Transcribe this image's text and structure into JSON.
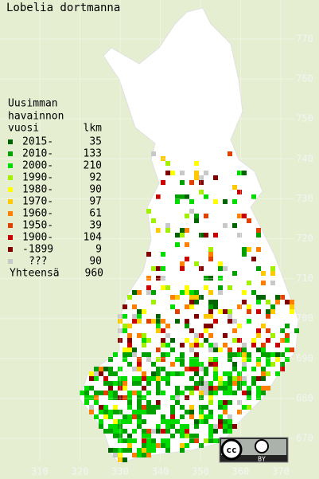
{
  "title": "Lobelia dortmanna",
  "legend": {
    "header": [
      "Uusimman",
      "havainnon"
    ],
    "period_label": "vuosi",
    "count_label": "lkm",
    "rows": [
      {
        "period": "2015-",
        "count": "35",
        "color": "#006400"
      },
      {
        "period": "2010-",
        "count": "133",
        "color": "#00a000"
      },
      {
        "period": "2000-",
        "count": "210",
        "color": "#00dc00"
      },
      {
        "period": "1990-",
        "count": "92",
        "color": "#a0f000"
      },
      {
        "period": "1980-",
        "count": "90",
        "color": "#ffff00"
      },
      {
        "period": "1970-",
        "count": "97",
        "color": "#ffc800"
      },
      {
        "period": "1960-",
        "count": "61",
        "color": "#ff8000"
      },
      {
        "period": "1950-",
        "count": "39",
        "color": "#e04000"
      },
      {
        "period": "1900-",
        "count": "104",
        "color": "#c80000"
      },
      {
        "period": "-1899",
        "count": "9",
        "color": "#800000"
      },
      {
        "period": "???",
        "count": "90",
        "color": "#c8c8c8"
      }
    ],
    "total_label": "Yhteensä",
    "total": "960"
  },
  "x_labels": [
    "310",
    "320",
    "330",
    "340",
    "350",
    "360",
    "370"
  ],
  "y_labels": [
    "770",
    "760",
    "750",
    "740",
    "730",
    "720",
    "710",
    "700",
    "690",
    "680",
    "670"
  ],
  "license": {
    "cc": "cc",
    "by": "BY"
  }
}
